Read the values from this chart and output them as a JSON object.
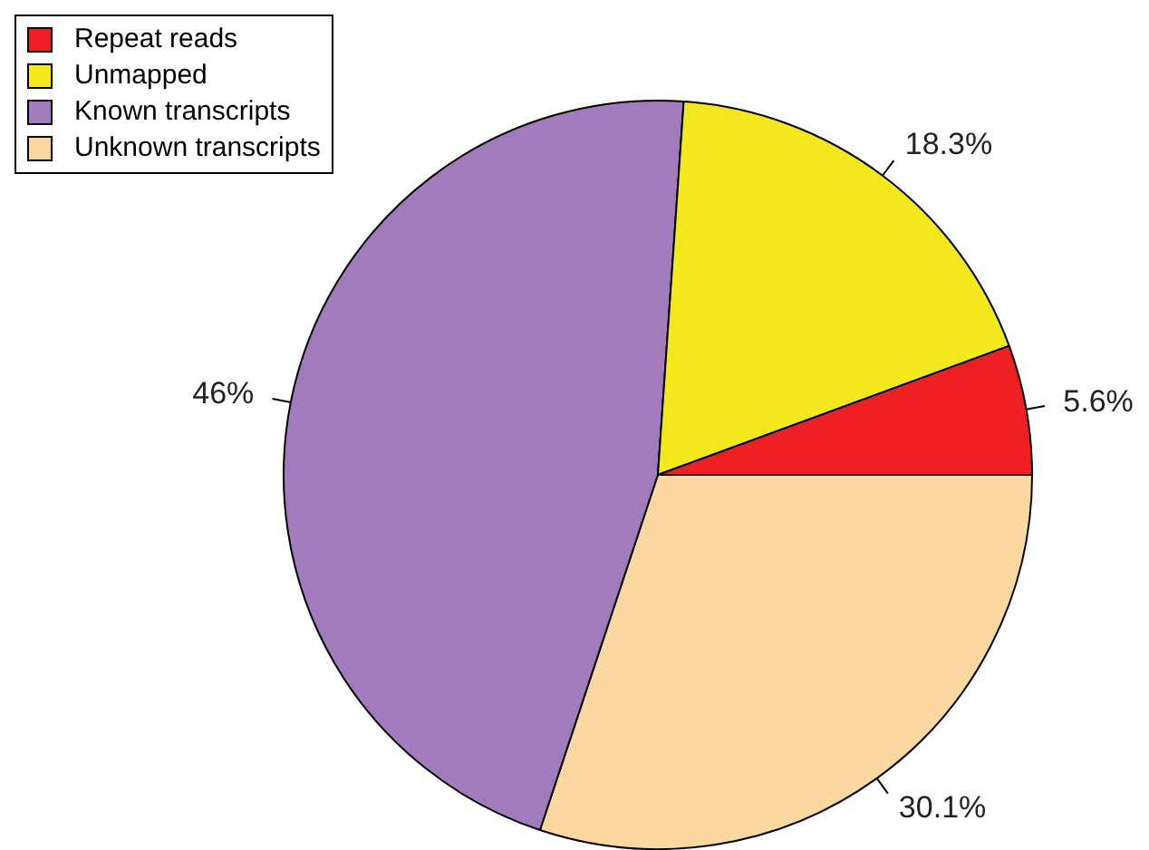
{
  "chart_data": {
    "type": "pie",
    "categories": [
      "Repeat reads",
      "Unmapped",
      "Known transcripts",
      "Unknown transcripts"
    ],
    "values": [
      5.6,
      18.3,
      46,
      30.1
    ],
    "value_labels": [
      "5.6%",
      "18.3%",
      "46%",
      "30.1%"
    ],
    "colors": [
      "#ee2024",
      "#f2e81b",
      "#a27bbd",
      "#fbd8a0"
    ],
    "legend": "top left"
  }
}
